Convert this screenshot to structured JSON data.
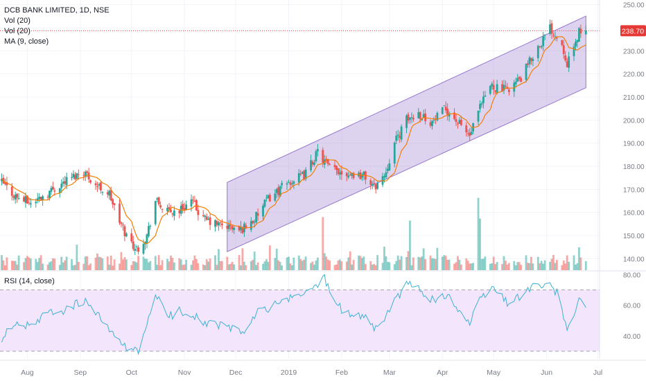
{
  "legend": {
    "symbol": "DCB BANK LIMITED, 1D, NSE",
    "vol1": "Vol (20)",
    "vol2": "Vol (20)",
    "ma": "MA (9, close)",
    "rsi": "RSI (14, close)"
  },
  "colors": {
    "up": "#26a69a",
    "down": "#ef5350",
    "ma": "#f57c00",
    "channel_fill": "#b39ddb",
    "channel_line": "#9575cd",
    "rsi_line": "#3db1d3",
    "rsi_band": "#f3e5fc",
    "price_line": "#e53935",
    "axis_text": "#787b86"
  },
  "chart_data": [
    {
      "type": "candlestick",
      "title": "DCB BANK LIMITED, 1D, NSE",
      "y_axis": {
        "range": [
          135,
          252
        ],
        "ticks": [
          "250.00",
          "240.00",
          "230.00",
          "220.00",
          "210.00",
          "200.00",
          "190.00",
          "180.00",
          "170.00",
          "160.00",
          "150.00",
          "140.00"
        ],
        "side": "right"
      },
      "x_axis": {
        "ticks": [
          "Aug",
          "Sep",
          "Oct",
          "Nov",
          "Dec",
          "2019",
          "Feb",
          "Mar",
          "Apr",
          "May",
          "Jun",
          "Jul"
        ]
      },
      "last_price_label": "238.70",
      "grid": true,
      "close_path": [
        [
          "2018-07-17",
          173
        ],
        [
          "2018-07-25",
          167
        ],
        [
          "2018-08-03",
          164
        ],
        [
          "2018-08-14",
          169
        ],
        [
          "2018-08-24",
          174
        ],
        [
          "2018-09-03",
          178
        ],
        [
          "2018-09-10",
          172
        ],
        [
          "2018-09-18",
          168
        ],
        [
          "2018-09-24",
          156
        ],
        [
          "2018-09-28",
          150
        ],
        [
          "2018-10-04",
          144
        ],
        [
          "2018-10-10",
          150
        ],
        [
          "2018-10-15",
          165
        ],
        [
          "2018-10-22",
          160
        ],
        [
          "2018-10-29",
          161
        ],
        [
          "2018-11-05",
          165
        ],
        [
          "2018-11-12",
          157
        ],
        [
          "2018-11-19",
          155
        ],
        [
          "2018-11-26",
          154
        ],
        [
          "2018-12-03",
          152
        ],
        [
          "2018-12-12",
          157
        ],
        [
          "2018-12-20",
          166
        ],
        [
          "2019-01-01",
          173
        ],
        [
          "2019-01-10",
          176
        ],
        [
          "2019-01-18",
          186
        ],
        [
          "2019-01-25",
          179
        ],
        [
          "2019-02-05",
          177
        ],
        [
          "2019-02-14",
          176
        ],
        [
          "2019-02-20",
          171
        ],
        [
          "2019-02-26",
          176
        ],
        [
          "2019-03-04",
          190
        ],
        [
          "2019-03-11",
          200
        ],
        [
          "2019-03-18",
          203
        ],
        [
          "2019-03-26",
          199
        ],
        [
          "2019-04-03",
          205
        ],
        [
          "2019-04-10",
          199
        ],
        [
          "2019-04-17",
          193
        ],
        [
          "2019-04-23",
          205
        ],
        [
          "2019-04-29",
          215
        ],
        [
          "2019-05-08",
          213
        ],
        [
          "2019-05-17",
          218
        ],
        [
          "2019-05-24",
          228
        ],
        [
          "2019-06-03",
          240
        ],
        [
          "2019-06-10",
          233
        ],
        [
          "2019-06-13",
          225
        ],
        [
          "2019-06-17",
          230
        ],
        [
          "2019-06-20",
          239
        ],
        [
          "2019-06-24",
          238.7
        ]
      ],
      "volume_spikes": [
        [
          "2019-01-21",
          "high"
        ],
        [
          "2019-03-13",
          "high"
        ],
        [
          "2019-04-22",
          "very-high"
        ],
        [
          "2019-04-23",
          "high"
        ],
        [
          "2019-06-20",
          "medium"
        ]
      ],
      "channel": {
        "start": [
          "2018-11-26",
          143,
          173
        ],
        "end": [
          "2019-06-24",
          214,
          245
        ]
      }
    },
    {
      "type": "line",
      "title": "RSI (14, close)",
      "y_axis": {
        "range": [
          25,
          82
        ],
        "ticks": [
          "80.00",
          "60.00",
          "40.00"
        ],
        "side": "right"
      },
      "band": [
        30,
        70
      ],
      "series": [
        {
          "name": "RSI (14, close)",
          "values": [
            [
              "2018-07-17",
              38
            ],
            [
              "2018-07-26",
              50
            ],
            [
              "2018-08-03",
              45
            ],
            [
              "2018-08-14",
              56
            ],
            [
              "2018-08-24",
              57
            ],
            [
              "2018-09-03",
              63
            ],
            [
              "2018-09-12",
              52
            ],
            [
              "2018-09-24",
              35
            ],
            [
              "2018-10-01",
              32
            ],
            [
              "2018-10-05",
              28
            ],
            [
              "2018-10-15",
              68
            ],
            [
              "2018-10-22",
              52
            ],
            [
              "2018-10-29",
              56
            ],
            [
              "2018-11-06",
              54
            ],
            [
              "2018-11-14",
              48
            ],
            [
              "2018-11-21",
              47
            ],
            [
              "2018-11-28",
              45
            ],
            [
              "2018-12-05",
              42
            ],
            [
              "2018-12-14",
              55
            ],
            [
              "2018-12-27",
              62
            ],
            [
              "2019-01-07",
              66
            ],
            [
              "2019-01-17",
              73
            ],
            [
              "2019-01-22",
              78
            ],
            [
              "2019-01-29",
              60
            ],
            [
              "2019-02-08",
              52
            ],
            [
              "2019-02-15",
              54
            ],
            [
              "2019-02-21",
              44
            ],
            [
              "2019-02-27",
              53
            ],
            [
              "2019-03-06",
              66
            ],
            [
              "2019-03-12",
              74
            ],
            [
              "2019-03-19",
              70
            ],
            [
              "2019-03-28",
              62
            ],
            [
              "2019-04-04",
              68
            ],
            [
              "2019-04-11",
              56
            ],
            [
              "2019-04-17",
              48
            ],
            [
              "2019-04-23",
              63
            ],
            [
              "2019-04-30",
              72
            ],
            [
              "2019-05-09",
              62
            ],
            [
              "2019-05-17",
              66
            ],
            [
              "2019-05-24",
              73
            ],
            [
              "2019-06-03",
              72
            ],
            [
              "2019-06-07",
              68
            ],
            [
              "2019-06-13",
              45
            ],
            [
              "2019-06-17",
              50
            ],
            [
              "2019-06-20",
              64
            ],
            [
              "2019-06-24",
              61
            ]
          ]
        }
      ]
    }
  ]
}
